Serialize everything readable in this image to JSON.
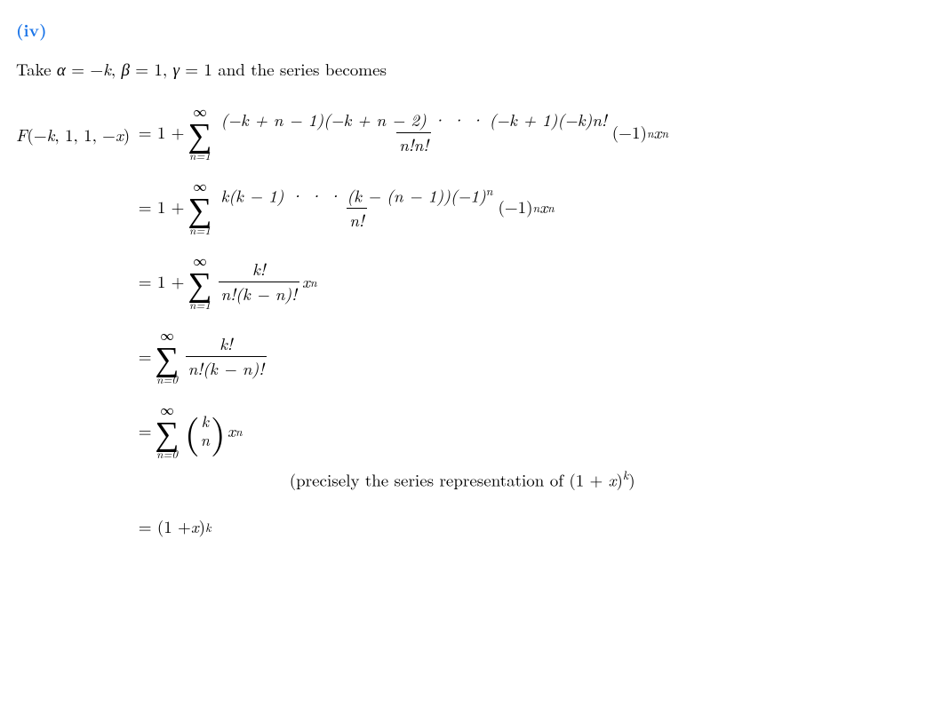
{
  "section": {
    "label": "(iv)"
  },
  "intro": {
    "prefix": "Take ",
    "alpha_eq": "α",
    "alpha_val": " = −",
    "alpha_k": "k",
    "sep1": ", ",
    "beta": "β",
    "beta_val": " = 1, ",
    "gamma": "γ",
    "gamma_val": " = 1 and the series becomes"
  },
  "lhs": {
    "F": "F",
    "open": "(−",
    "k": "k",
    "args": ", 1, 1, −",
    "x": "x",
    "close": ")"
  },
  "lines": {
    "l1": {
      "one_plus": "= 1 + ",
      "sum_top": "∞",
      "sum_bot": "n=1",
      "num": "(−k + n − 1)(−k + n − 2) · · · (−k + 1)(−k)n!",
      "den": "n!n!",
      "tail_a": "(−1)",
      "tail_n": "n",
      "tail_x": "x",
      "tail_xn": "n"
    },
    "l2": {
      "one_plus": "= 1 + ",
      "sum_top": "∞",
      "sum_bot": "n=1",
      "num_a": "k(k − 1) · · · (k − (n − 1))(−1)",
      "num_n": "n",
      "den": "n!",
      "tail_a": "(−1)",
      "tail_n": "n",
      "tail_x": "x",
      "tail_xn": "n"
    },
    "l3": {
      "one_plus": "= 1 + ",
      "sum_top": "∞",
      "sum_bot": "n=1",
      "num": "k!",
      "den": "n!(k − n)!",
      "tail_x": "x",
      "tail_xn": "n"
    },
    "l4": {
      "eq": "= ",
      "sum_top": "∞",
      "sum_bot": "n=0",
      "num": "k!",
      "den": "n!(k − n)!"
    },
    "l5": {
      "eq": "= ",
      "sum_top": "∞",
      "sum_bot": "n=0",
      "binom_top": "k",
      "binom_bot": "n",
      "tail_x": "x",
      "tail_xn": "n"
    },
    "note": {
      "text": "(precisely the series representation of (1 + ",
      "x": "x",
      "close": ")",
      "k": "k",
      "end": ")"
    },
    "l6": {
      "eq": "= (1 + ",
      "x": "x",
      "close": ")",
      "k": "k"
    }
  }
}
